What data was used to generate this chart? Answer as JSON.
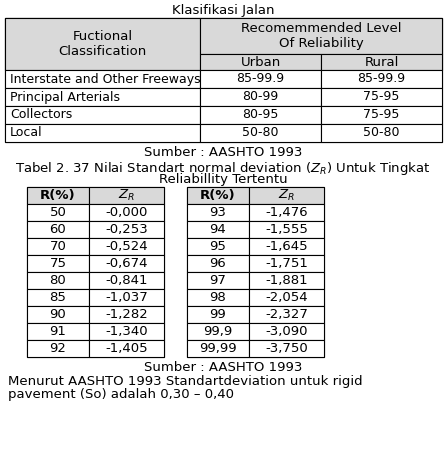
{
  "title1": "Klasifikasi Jalan",
  "table1_rows": [
    [
      "Interstate and Other Freeways",
      "85-99.9",
      "85-99.9"
    ],
    [
      "Principal Arterials",
      "80-99",
      "75-95"
    ],
    [
      "Collectors",
      "80-95",
      "75-95"
    ],
    [
      "Local",
      "50-80",
      "50-80"
    ]
  ],
  "source1": "Sumber : AASHTO 1993",
  "title2_line1": "Tabel 2. 37 Nilai Standart normal deviation (Z",
  "title2_line1b": ") Untuk Tingkat",
  "title2_line2": "Reliabillity Tertentu",
  "table2_left_rows": [
    [
      "50",
      "-0,000"
    ],
    [
      "60",
      "-0,253"
    ],
    [
      "70",
      "-0,524"
    ],
    [
      "75",
      "-0,674"
    ],
    [
      "80",
      "-0,841"
    ],
    [
      "85",
      "-1,037"
    ],
    [
      "90",
      "-1,282"
    ],
    [
      "91",
      "-1,340"
    ],
    [
      "92",
      "-1,405"
    ]
  ],
  "table2_right_rows": [
    [
      "93",
      "-1,476"
    ],
    [
      "94",
      "-1,555"
    ],
    [
      "95",
      "-1,645"
    ],
    [
      "96",
      "-1,751"
    ],
    [
      "97",
      "-1,881"
    ],
    [
      "98",
      "-2,054"
    ],
    [
      "99",
      "-2,327"
    ],
    [
      "99,9",
      "-3,090"
    ],
    [
      "99,99",
      "-3,750"
    ]
  ],
  "source2": "Sumber : AASHTO 1993",
  "footer_line1": "Menurut AASHTO 1993 Standartdeviation untuk rigid",
  "footer_line2": "pavement (So) adalah 0,30 – 0,40",
  "bg_color": "#ffffff",
  "text_color": "#000000",
  "header_bg": "#d9d9d9",
  "font_size": 9.5
}
